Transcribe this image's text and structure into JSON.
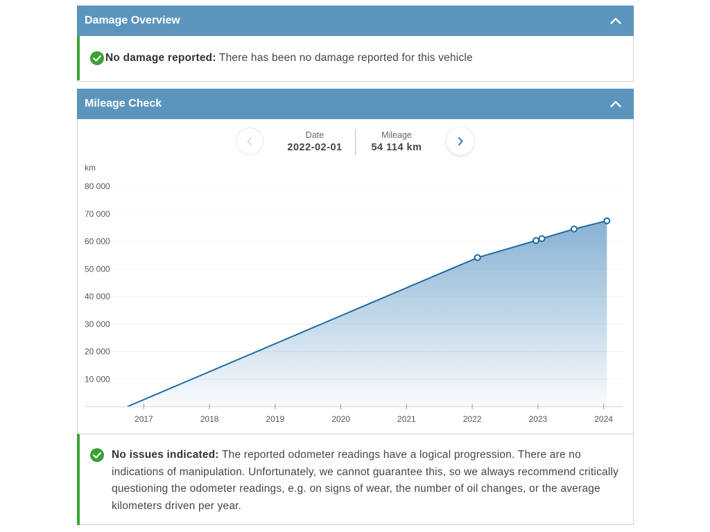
{
  "damage_panel": {
    "title": "Damage Overview",
    "status_heading": "No damage reported:",
    "status_text": "There has been no damage reported for this vehicle"
  },
  "mileage_panel": {
    "title": "Mileage Check",
    "date_label": "Date",
    "date_value": "2022-02-01",
    "mileage_label": "Mileage",
    "mileage_value": "54 114 km",
    "status_heading": "No issues indicated:",
    "status_text": "The reported odometer readings have a logical progression. There are no indications of manipulation. Unfortunately, we cannot guarantee this, so we always recommend critically questioning the odometer readings, e.g. on signs of wear, the number of oil changes, or the average kilometers driven per year."
  },
  "colors": {
    "header_bg": "#5b95bd",
    "accent_green": "#3aa335",
    "line": "#1f6aa0",
    "nav_arrow": "#2a76b0"
  },
  "chart_data": {
    "type": "area",
    "ylabel": "km",
    "ylim": [
      0,
      80000
    ],
    "yticks": [
      10000,
      20000,
      30000,
      40000,
      50000,
      60000,
      70000,
      80000
    ],
    "ytick_labels": [
      "10 000",
      "20 000",
      "30 000",
      "40 000",
      "50 000",
      "60 000",
      "70 000",
      "80 000"
    ],
    "xticks": [
      2017,
      2018,
      2019,
      2020,
      2021,
      2022,
      2023,
      2024
    ],
    "xtick_labels": [
      "2017",
      "2018",
      "2019",
      "2020",
      "2021",
      "2022",
      "2023",
      "2024"
    ],
    "xlim": [
      2016.5,
      2024.3
    ],
    "grid": true,
    "series": [
      {
        "points": [
          {
            "x": 2016.75,
            "y": 0,
            "marker": false
          },
          {
            "x": 2022.08,
            "y": 54114,
            "marker": true
          },
          {
            "x": 2022.97,
            "y": 60300,
            "marker": true
          },
          {
            "x": 2023.06,
            "y": 61000,
            "marker": true
          },
          {
            "x": 2023.55,
            "y": 64500,
            "marker": true
          },
          {
            "x": 2024.05,
            "y": 67500,
            "marker": true
          }
        ]
      }
    ]
  }
}
